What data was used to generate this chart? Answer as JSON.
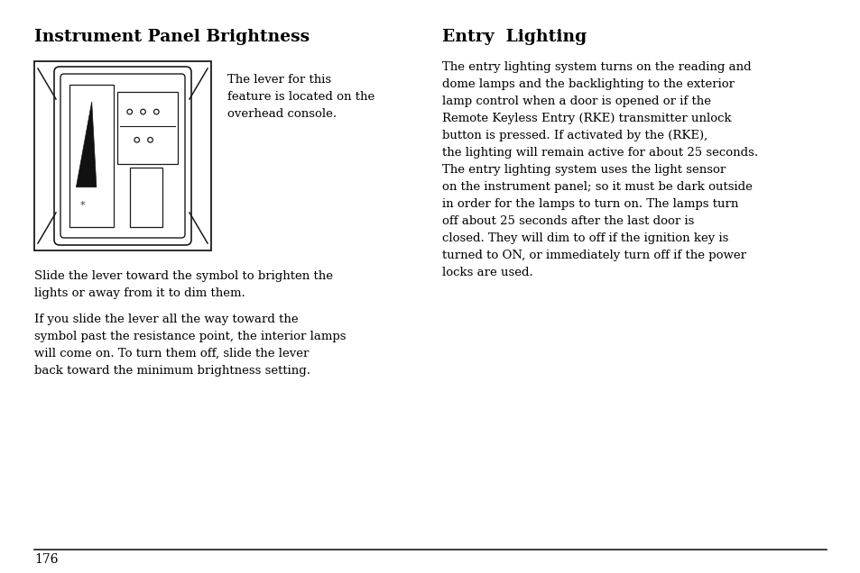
{
  "bg_color": "#ffffff",
  "left_title": "Instrument Panel Brightness",
  "right_title": "Entry  Lighting",
  "left_caption": "The lever for this\nfeature is located on the\noverhead console.",
  "left_para1": "Slide the lever toward the symbol to brighten the\nlights or away from it to dim them.",
  "left_para2": "If you slide the lever all the way toward the\nsymbol past the resistance point, the interior lamps\nwill come on. To turn them off, slide the lever\nback toward the minimum brightness setting.",
  "right_para": "The entry lighting system turns on the reading and\ndome lamps and the backlighting to the exterior\nlamp control when a door is opened or if the\nRemote Keyless Entry (RKE) transmitter unlock\nbutton is pressed. If activated by the (RKE),\nthe lighting will remain active for about 25 seconds.\nThe entry lighting system uses the light sensor\non the instrument panel; so it must be dark outside\nin order for the lamps to turn on. The lamps turn\noff about 25 seconds after the last door is\nclosed. They will dim to off if the ignition key is\nturned to ON, or immediately turn off if the power\nlocks are used.",
  "page_number": "176",
  "title_fontsize": 13.5,
  "body_fontsize": 9.5,
  "caption_fontsize": 9.5,
  "page_num_fontsize": 10
}
